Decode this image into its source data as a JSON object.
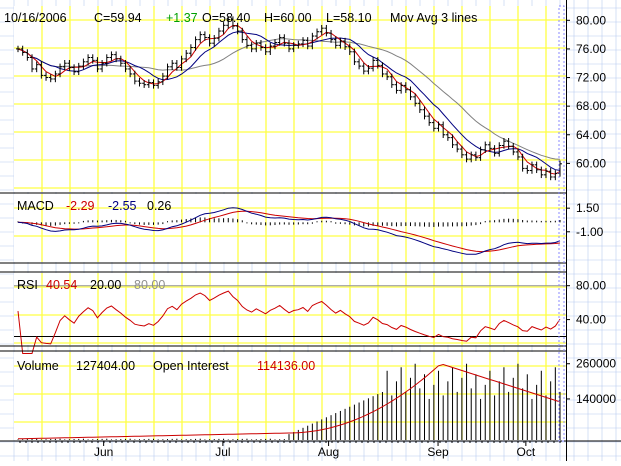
{
  "colors": {
    "background": "#ffffff",
    "plot_background": "#ffffff",
    "grid_yellow": "#ffff44",
    "grid_blue": "#b8ccf0",
    "price_bar": "#000000",
    "ma_fast": "#cc0000",
    "ma_mid": "#000080",
    "ma_slow": "#808080",
    "macd_line": "#000080",
    "signal_line": "#cc0000",
    "rsi_line": "#cc0000",
    "volume_bar": "#000000",
    "open_interest": "#cc0000",
    "text_default": "#000000",
    "text_up": "#00a000",
    "text_red": "#cc0000",
    "text_navy": "#000080",
    "text_grey": "#909090"
  },
  "header": {
    "date": "10/16/2006",
    "close": "C=59.94",
    "change": "+1.37",
    "open": "O=58.40",
    "high": "H=60.00",
    "low": "L=58.10",
    "study": "Mov Avg 3 lines"
  },
  "macd_header": {
    "name": "MACD",
    "macd": "-2.29",
    "signal": "-2.55",
    "hist": "0.26"
  },
  "rsi_header": {
    "name": "RSI",
    "value": "40.54",
    "low": "20.00",
    "high": "80.00"
  },
  "volume_header": {
    "name": "Volume",
    "volume": "127404.00",
    "oi_label": "Open Interest",
    "oi": "114136.00"
  },
  "chart_data": [
    {
      "type": "ohlc",
      "panel": "price",
      "x_label_months": [
        "Jun",
        "Jul",
        "Aug",
        "Sep",
        "Oct"
      ],
      "y_ticks": [
        "80.00",
        "76.00",
        "72.00",
        "68.00",
        "64.00",
        "60.00"
      ],
      "ylim": [
        56,
        82
      ],
      "closes": [
        76.0,
        75.5,
        74.8,
        73.2,
        73.8,
        72.3,
        72.0,
        71.8,
        72.5,
        73.5,
        74.0,
        73.4,
        72.8,
        73.6,
        74.2,
        74.8,
        74.4,
        73.2,
        74.0,
        74.8,
        75.2,
        74.6,
        74.0,
        73.2,
        72.5,
        71.5,
        71.2,
        71.0,
        71.3,
        70.9,
        71.4,
        72.2,
        73.5,
        74.0,
        73.4,
        74.6,
        75.4,
        76.2,
        77.3,
        78.0,
        77.6,
        76.8,
        77.5,
        78.5,
        79.3,
        80.1,
        79.2,
        78.5,
        77.3,
        76.5,
        76.0,
        76.8,
        76.2,
        75.6,
        76.4,
        76.9,
        77.6,
        76.8,
        76.0,
        76.5,
        76.7,
        77.2,
        76.4,
        77.8,
        78.4,
        78.9,
        78.2,
        77.3,
        76.5,
        77.1,
        76.3,
        75.6,
        74.2,
        73.6,
        72.9,
        73.3,
        74.4,
        73.7,
        72.5,
        72.1,
        71.0,
        70.2,
        70.9,
        70.3,
        69.3,
        68.4,
        67.5,
        66.6,
        65.7,
        64.9,
        65.4,
        64.0,
        63.6,
        62.6,
        62.0,
        61.2,
        60.6,
        61.2,
        60.8,
        61.9,
        62.6,
        62.1,
        61.4,
        62.5,
        63.1,
        62.4,
        61.6,
        60.9,
        59.3,
        59.0,
        59.8,
        59.1,
        58.4,
        58.9,
        58.1,
        58.6,
        59.94
      ],
      "ma_fast_name": "Mov Avg 3 lines"
    },
    {
      "type": "macd",
      "panel": "macd",
      "y_ticks": [
        "1.50",
        "-1.00"
      ],
      "ylim": [
        -4.2,
        3.0
      ],
      "macd_last": -2.29,
      "signal_last": -2.55,
      "hist_last": 0.26
    },
    {
      "type": "rsi",
      "panel": "rsi",
      "y_ticks": [
        "80.00",
        "40.00"
      ],
      "ylim": [
        10,
        95
      ],
      "levels": [
        20,
        80
      ],
      "last": 40.54
    },
    {
      "type": "bar",
      "panel": "volume",
      "y_ticks": [
        "260000",
        "140000"
      ],
      "ylim": [
        0,
        300000
      ],
      "volume_last": 127404,
      "open_interest_last": 114136
    }
  ]
}
